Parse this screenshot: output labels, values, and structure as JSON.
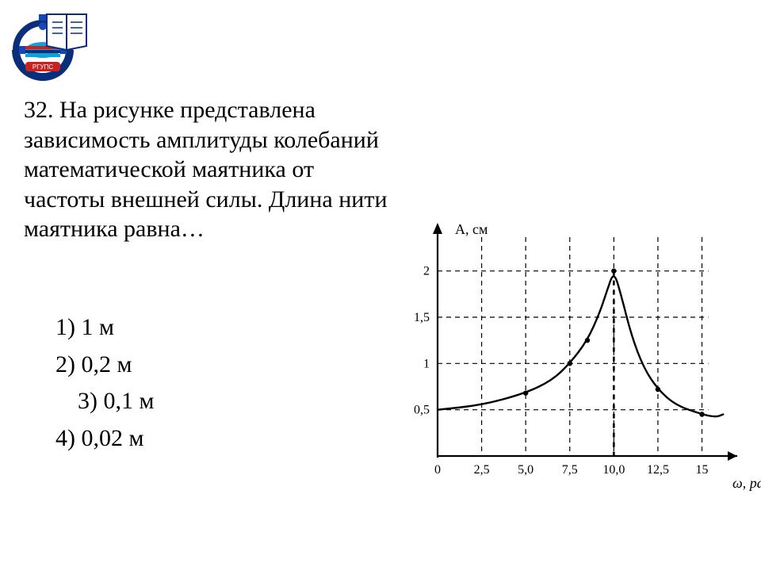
{
  "question": {
    "number": "32.",
    "text": "На рисунке представлена зависимость амплитуды колебаний математической маятника от частоты внешней силы. Длина нити маятника равна…"
  },
  "answers": [
    {
      "label": "1) 1 м",
      "indent": 0
    },
    {
      "label": "2) 0,2 м",
      "indent": 0
    },
    {
      "label": "3) 0,1 м",
      "indent": 28
    },
    {
      "label": "4) 0,02 м",
      "indent": 0
    }
  ],
  "chart": {
    "type": "line",
    "y_label": "А, см",
    "x_label": "ω, рад/",
    "x_ticks": [
      0,
      2.5,
      5.0,
      7.5,
      10.0,
      12.5,
      15
    ],
    "x_tick_labels": [
      "0",
      "2,5",
      "5,0",
      "7,5",
      "10,0",
      "12,5",
      "15"
    ],
    "y_ticks": [
      0.5,
      1,
      1.5,
      2
    ],
    "y_tick_labels": [
      "0,5",
      "1",
      "1,5",
      "2"
    ],
    "xlim": [
      0,
      17
    ],
    "ylim": [
      0,
      2.4
    ],
    "resonance_x": 10.0,
    "curve_points": [
      [
        0,
        0.5
      ],
      [
        2.5,
        0.55
      ],
      [
        5.0,
        0.68
      ],
      [
        6.5,
        0.82
      ],
      [
        7.5,
        1.0
      ],
      [
        8.5,
        1.25
      ],
      [
        9.2,
        1.55
      ],
      [
        9.6,
        1.78
      ],
      [
        10.0,
        2.0
      ],
      [
        10.4,
        1.75
      ],
      [
        11.0,
        1.3
      ],
      [
        11.7,
        0.95
      ],
      [
        12.5,
        0.72
      ],
      [
        13.5,
        0.55
      ],
      [
        15.0,
        0.45
      ],
      [
        15.8,
        0.42
      ],
      [
        16.2,
        0.45
      ]
    ],
    "marker_points": [
      [
        5.0,
        0.68
      ],
      [
        7.5,
        1.0
      ],
      [
        8.5,
        1.25
      ],
      [
        10.0,
        2.0
      ],
      [
        12.5,
        0.72
      ],
      [
        15.0,
        0.45
      ]
    ],
    "colors": {
      "axis": "#000000",
      "grid": "#000000",
      "curve": "#000000",
      "background": "#ffffff",
      "text": "#000000"
    },
    "line_width_curve": 2.4,
    "line_width_axis": 2.2,
    "grid_dash": "6,5",
    "resonance_dash": "6,6",
    "tick_fontsize": 16,
    "label_fontsize": 18
  },
  "logo": {
    "text": "РГУПС",
    "colors": {
      "outer_ring": "#0b2e7a",
      "accent": "#c62323",
      "book": "#ffffff",
      "gear": "#1446b5"
    }
  }
}
